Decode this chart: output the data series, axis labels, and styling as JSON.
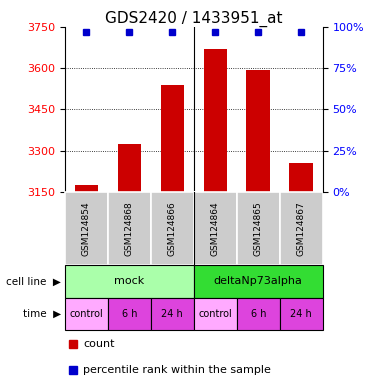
{
  "title": "GDS2420 / 1433951_at",
  "samples": [
    "GSM124854",
    "GSM124868",
    "GSM124866",
    "GSM124864",
    "GSM124865",
    "GSM124867"
  ],
  "counts": [
    3175,
    3325,
    3540,
    3670,
    3595,
    3255
  ],
  "ylim_left": [
    3150,
    3750
  ],
  "yticks_left": [
    3150,
    3300,
    3450,
    3600,
    3750
  ],
  "ylim_right": [
    0,
    100
  ],
  "yticks_right": [
    0,
    25,
    50,
    75,
    100
  ],
  "bar_color": "#cc0000",
  "dot_color": "#0000cc",
  "bar_width": 0.55,
  "cell_line_groups": [
    {
      "label": "mock",
      "start": 0,
      "end": 3,
      "color": "#aaffaa"
    },
    {
      "label": "deltaNp73alpha",
      "start": 3,
      "end": 6,
      "color": "#33dd33"
    }
  ],
  "time_labels": [
    "control",
    "6 h",
    "24 h",
    "control",
    "6 h",
    "24 h"
  ],
  "time_colors": [
    "#ffaaff",
    "#dd44dd",
    "#dd44dd",
    "#ffaaff",
    "#dd44dd",
    "#dd44dd"
  ],
  "sample_bg_color": "#cccccc",
  "cell_line_label": "cell line",
  "time_label": "time",
  "legend_count_label": "count",
  "legend_percentile_label": "percentile rank within the sample",
  "title_fontsize": 11,
  "tick_fontsize": 8,
  "annot_fontsize": 8,
  "sample_fontsize": 6.5
}
